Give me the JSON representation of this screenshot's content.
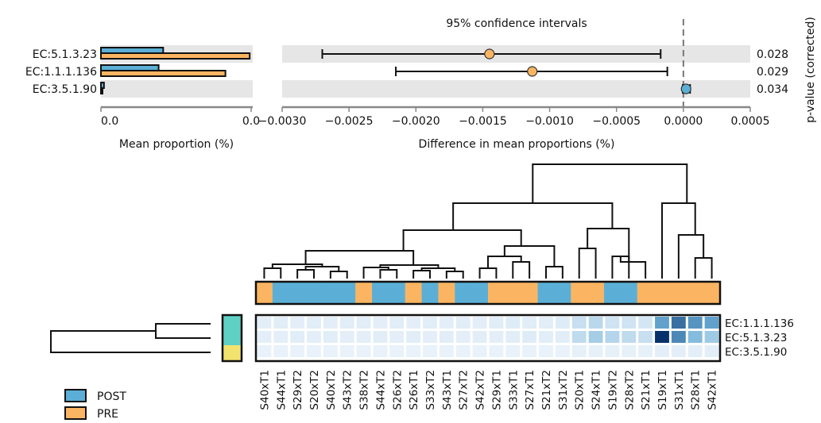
{
  "chart_data": [
    {
      "type": "bar",
      "categories": [
        "EC:5.1.3.23",
        "EC:1.1.1.136",
        "EC:3.5.1.90"
      ],
      "series": [
        {
          "name": "POST",
          "values": [
            0.0041,
            0.0038,
            0.0002
          ]
        },
        {
          "name": "PRE",
          "values": [
            0.0098,
            0.0082,
            0.0001
          ]
        }
      ],
      "xlabel": "Mean proportion (%)",
      "xticks": [
        "0.0",
        "0.0"
      ],
      "xlim": [
        0,
        0.01
      ]
    },
    {
      "type": "scatter",
      "title": "95% confidence intervals",
      "categories": [
        "EC:5.1.3.23",
        "EC:1.1.1.136",
        "EC:3.5.1.90"
      ],
      "points": [
        {
          "x": -0.00145,
          "lo": -0.0027,
          "hi": -0.00017,
          "group": "PRE"
        },
        {
          "x": -0.00113,
          "lo": -0.00215,
          "hi": -0.00012,
          "group": "PRE"
        },
        {
          "x": 2e-05,
          "lo": -5e-06,
          "hi": 5e-05,
          "group": "POST"
        }
      ],
      "pvalues": [
        "0.028",
        "0.029",
        "0.034"
      ],
      "xlabel": "Difference in mean proportions (%)",
      "ylabel": "p-value (corrected)",
      "xlim": [
        -0.003,
        0.0005
      ],
      "xticks": [
        "−0.0030",
        "−0.0025",
        "−0.0020",
        "−0.0015",
        "−0.0010",
        "−0.0005",
        "0.0000",
        "0.0005"
      ],
      "ref_line": 0
    },
    {
      "type": "heatmap",
      "rows": [
        "EC:1.1.1.136",
        "EC:5.1.3.23",
        "EC:3.5.1.90"
      ],
      "columns": [
        "S40xT1",
        "S44xT1",
        "S29xT2",
        "S20xT2",
        "S40xT2",
        "S43xT2",
        "S38xT2",
        "S44xT2",
        "S26xT2",
        "S26xT1",
        "S33xT2",
        "S43xT1",
        "S27xT2",
        "S42xT2",
        "S29xT1",
        "S33xT1",
        "S27xT1",
        "S21xT2",
        "S31xT2",
        "S20xT1",
        "S24xT1",
        "S19xT2",
        "S28xT2",
        "S21xT1",
        "S19xT1",
        "S31xT1",
        "S28xT1",
        "S42xT1"
      ],
      "groups": [
        "PRE",
        "POST",
        "POST",
        "POST",
        "POST",
        "POST",
        "PRE",
        "POST",
        "POST",
        "PRE",
        "POST",
        "PRE",
        "POST",
        "POST",
        "PRE",
        "PRE",
        "PRE",
        "POST",
        "POST",
        "PRE",
        "PRE",
        "POST",
        "POST",
        "PRE",
        "PRE",
        "PRE",
        "PRE",
        "PRE"
      ],
      "values": [
        [
          0.04,
          0.05,
          0.04,
          0.05,
          0.04,
          0.05,
          0.05,
          0.04,
          0.05,
          0.04,
          0.05,
          0.04,
          0.05,
          0.04,
          0.05,
          0.06,
          0.05,
          0.05,
          0.06,
          0.15,
          0.2,
          0.12,
          0.12,
          0.1,
          0.55,
          0.75,
          0.6,
          0.55
        ],
        [
          0.04,
          0.04,
          0.05,
          0.04,
          0.05,
          0.04,
          0.04,
          0.05,
          0.04,
          0.05,
          0.04,
          0.05,
          0.04,
          0.05,
          0.04,
          0.05,
          0.06,
          0.05,
          0.05,
          0.18,
          0.28,
          0.22,
          0.18,
          0.15,
          1.0,
          0.65,
          0.4,
          0.3
        ],
        [
          0.02,
          0.02,
          0.02,
          0.02,
          0.02,
          0.02,
          0.02,
          0.02,
          0.02,
          0.02,
          0.02,
          0.02,
          0.02,
          0.02,
          0.02,
          0.02,
          0.02,
          0.02,
          0.02,
          0.03,
          0.03,
          0.03,
          0.03,
          0.03,
          0.04,
          0.04,
          0.04,
          0.04
        ]
      ],
      "row_groups": [
        "teal",
        "teal",
        "yellow"
      ]
    }
  ],
  "legend": [
    {
      "label": "POST",
      "color": "#5bafd6"
    },
    {
      "label": "PRE",
      "color": "#fbb562"
    }
  ],
  "colors": {
    "post": "#5bafd6",
    "pre": "#fbb562",
    "band": "#e6e6e6",
    "heat_high": "#08306b",
    "heat_low": "#eef4fb",
    "teal": "#5fd1c4",
    "yellow": "#f1e36e"
  }
}
